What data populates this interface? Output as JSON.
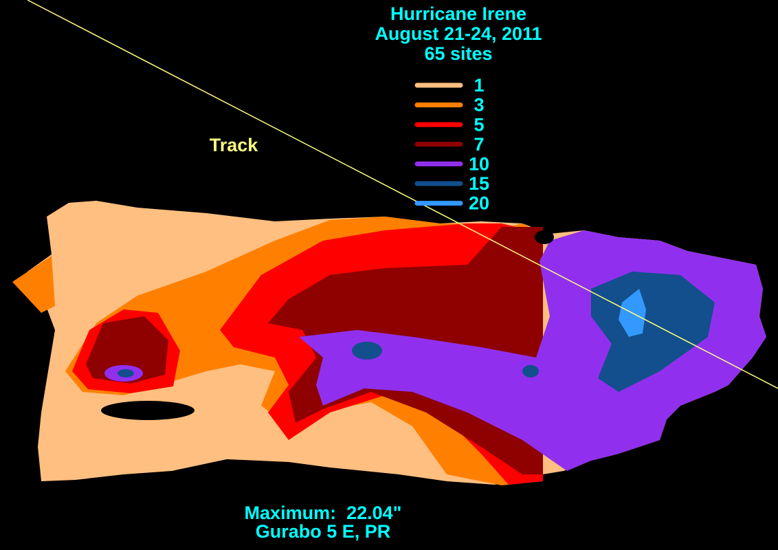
{
  "title": [
    "Hurricane Irene",
    "August 21-24, 2011",
    "65 sites"
  ],
  "legend": {
    "items": [
      {
        "value": 1,
        "color": "#ffbf80"
      },
      {
        "value": 3,
        "color": "#ff8000"
      },
      {
        "value": 5,
        "color": "#ff0000"
      },
      {
        "value": 7,
        "color": "#8f0000"
      },
      {
        "value": 10,
        "color": "#9030ee"
      },
      {
        "value": 15,
        "color": "#124f8c"
      },
      {
        "value": 20,
        "color": "#3399ff"
      }
    ]
  },
  "track_label": "Track",
  "footer": [
    "Maximum:  22.04\"",
    "Gurabo 5 E, PR"
  ]
}
